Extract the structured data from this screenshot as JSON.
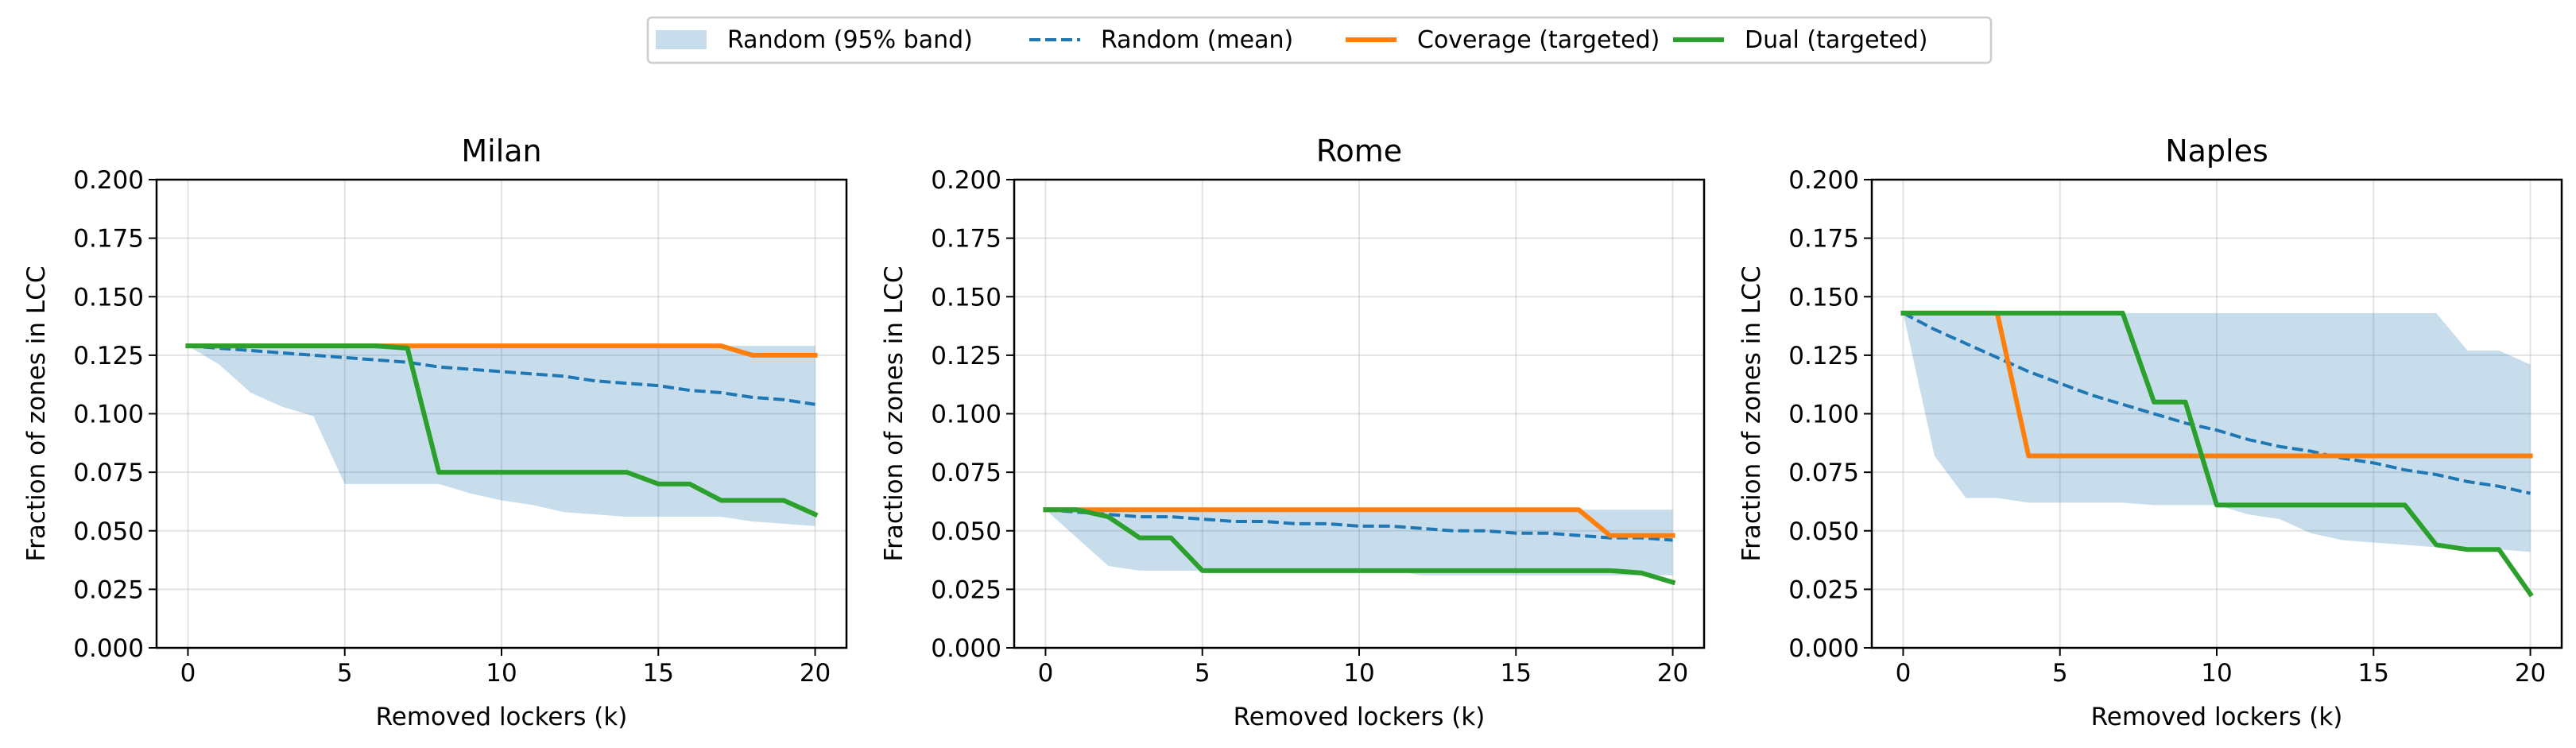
{
  "legend": {
    "placement": "top-center",
    "entries": [
      {
        "key": "band",
        "label": "Random (95% band)",
        "color": "#1f77b4",
        "style": "band"
      },
      {
        "key": "mean",
        "label": "Random (mean)",
        "color": "#1f77b4",
        "style": "dashed"
      },
      {
        "key": "coverage",
        "label": "Coverage (targeted)",
        "color": "#ff7f0e",
        "style": "solid"
      },
      {
        "key": "dual",
        "label": "Dual (targeted)",
        "color": "#2ca02c",
        "style": "solid"
      }
    ]
  },
  "chart_data": [
    {
      "type": "line",
      "title": "Milan",
      "xlabel": "Removed lockers (k)",
      "ylabel": "Fraction of zones in LCC",
      "xlim": [
        -1,
        21
      ],
      "ylim": [
        0,
        0.2
      ],
      "xticks": [
        0,
        5,
        10,
        15,
        20
      ],
      "yticks": [
        0,
        0.025,
        0.05,
        0.075,
        0.1,
        0.125,
        0.15,
        0.175,
        0.2
      ],
      "ytick_labels": [
        "0.000",
        "0.025",
        "0.050",
        "0.075",
        "0.100",
        "0.125",
        "0.150",
        "0.175",
        "0.200"
      ],
      "grid": true,
      "x": [
        0,
        1,
        2,
        3,
        4,
        5,
        6,
        7,
        8,
        9,
        10,
        11,
        12,
        13,
        14,
        15,
        16,
        17,
        18,
        19,
        20
      ],
      "band": {
        "lower": [
          0.129,
          0.121,
          0.109,
          0.103,
          0.099,
          0.07,
          0.07,
          0.07,
          0.07,
          0.066,
          0.063,
          0.061,
          0.058,
          0.057,
          0.056,
          0.056,
          0.056,
          0.056,
          0.054,
          0.053,
          0.052
        ],
        "upper": [
          0.129,
          0.129,
          0.129,
          0.129,
          0.129,
          0.129,
          0.129,
          0.129,
          0.129,
          0.129,
          0.129,
          0.129,
          0.129,
          0.129,
          0.129,
          0.129,
          0.129,
          0.129,
          0.129,
          0.129,
          0.129
        ]
      },
      "series": [
        {
          "key": "mean",
          "name": "Random (mean)",
          "values": [
            0.129,
            0.128,
            0.127,
            0.126,
            0.125,
            0.124,
            0.123,
            0.122,
            0.12,
            0.119,
            0.118,
            0.117,
            0.116,
            0.114,
            0.113,
            0.112,
            0.11,
            0.109,
            0.107,
            0.106,
            0.104
          ]
        },
        {
          "key": "coverage",
          "name": "Coverage (targeted)",
          "values": [
            0.129,
            0.129,
            0.129,
            0.129,
            0.129,
            0.129,
            0.129,
            0.129,
            0.129,
            0.129,
            0.129,
            0.129,
            0.129,
            0.129,
            0.129,
            0.129,
            0.129,
            0.129,
            0.125,
            0.125,
            0.125
          ]
        },
        {
          "key": "dual",
          "name": "Dual (targeted)",
          "values": [
            0.129,
            0.129,
            0.129,
            0.129,
            0.129,
            0.129,
            0.129,
            0.128,
            0.075,
            0.075,
            0.075,
            0.075,
            0.075,
            0.075,
            0.075,
            0.07,
            0.07,
            0.063,
            0.063,
            0.063,
            0.057
          ]
        }
      ]
    },
    {
      "type": "line",
      "title": "Rome",
      "xlabel": "Removed lockers (k)",
      "ylabel": "Fraction of zones in LCC",
      "xlim": [
        -1,
        21
      ],
      "ylim": [
        0,
        0.2
      ],
      "xticks": [
        0,
        5,
        10,
        15,
        20
      ],
      "yticks": [
        0,
        0.025,
        0.05,
        0.075,
        0.1,
        0.125,
        0.15,
        0.175,
        0.2
      ],
      "ytick_labels": [
        "0.000",
        "0.025",
        "0.050",
        "0.075",
        "0.100",
        "0.125",
        "0.150",
        "0.175",
        "0.200"
      ],
      "grid": true,
      "x": [
        0,
        1,
        2,
        3,
        4,
        5,
        6,
        7,
        8,
        9,
        10,
        11,
        12,
        13,
        14,
        15,
        16,
        17,
        18,
        19,
        20
      ],
      "band": {
        "lower": [
          0.059,
          0.047,
          0.035,
          0.033,
          0.033,
          0.033,
          0.033,
          0.033,
          0.033,
          0.033,
          0.033,
          0.033,
          0.031,
          0.031,
          0.031,
          0.031,
          0.031,
          0.031,
          0.031,
          0.031,
          0.031
        ],
        "upper": [
          0.059,
          0.059,
          0.059,
          0.059,
          0.059,
          0.059,
          0.059,
          0.059,
          0.059,
          0.059,
          0.059,
          0.059,
          0.059,
          0.059,
          0.059,
          0.059,
          0.059,
          0.059,
          0.059,
          0.059,
          0.059
        ]
      },
      "series": [
        {
          "key": "mean",
          "name": "Random (mean)",
          "values": [
            0.059,
            0.058,
            0.057,
            0.056,
            0.056,
            0.055,
            0.054,
            0.054,
            0.053,
            0.053,
            0.052,
            0.052,
            0.051,
            0.05,
            0.05,
            0.049,
            0.049,
            0.048,
            0.047,
            0.047,
            0.046
          ]
        },
        {
          "key": "coverage",
          "name": "Coverage (targeted)",
          "values": [
            0.059,
            0.059,
            0.059,
            0.059,
            0.059,
            0.059,
            0.059,
            0.059,
            0.059,
            0.059,
            0.059,
            0.059,
            0.059,
            0.059,
            0.059,
            0.059,
            0.059,
            0.059,
            0.048,
            0.048,
            0.048
          ]
        },
        {
          "key": "dual",
          "name": "Dual (targeted)",
          "values": [
            0.059,
            0.059,
            0.056,
            0.047,
            0.047,
            0.033,
            0.033,
            0.033,
            0.033,
            0.033,
            0.033,
            0.033,
            0.033,
            0.033,
            0.033,
            0.033,
            0.033,
            0.033,
            0.033,
            0.032,
            0.028
          ]
        }
      ]
    },
    {
      "type": "line",
      "title": "Naples",
      "xlabel": "Removed lockers (k)",
      "ylabel": "Fraction of zones in LCC",
      "xlim": [
        -1,
        21
      ],
      "ylim": [
        0,
        0.2
      ],
      "xticks": [
        0,
        5,
        10,
        15,
        20
      ],
      "yticks": [
        0,
        0.025,
        0.05,
        0.075,
        0.1,
        0.125,
        0.15,
        0.175,
        0.2
      ],
      "ytick_labels": [
        "0.000",
        "0.025",
        "0.050",
        "0.075",
        "0.100",
        "0.125",
        "0.150",
        "0.175",
        "0.200"
      ],
      "grid": true,
      "x": [
        0,
        1,
        2,
        3,
        4,
        5,
        6,
        7,
        8,
        9,
        10,
        11,
        12,
        13,
        14,
        15,
        16,
        17,
        18,
        19,
        20
      ],
      "band": {
        "lower": [
          0.143,
          0.082,
          0.064,
          0.064,
          0.062,
          0.062,
          0.062,
          0.062,
          0.061,
          0.061,
          0.061,
          0.057,
          0.055,
          0.049,
          0.046,
          0.045,
          0.044,
          0.043,
          0.043,
          0.042,
          0.041
        ],
        "upper": [
          0.143,
          0.143,
          0.143,
          0.143,
          0.143,
          0.143,
          0.143,
          0.143,
          0.143,
          0.143,
          0.143,
          0.143,
          0.143,
          0.143,
          0.143,
          0.143,
          0.143,
          0.143,
          0.127,
          0.127,
          0.121
        ]
      },
      "series": [
        {
          "key": "mean",
          "name": "Random (mean)",
          "values": [
            0.143,
            0.136,
            0.13,
            0.124,
            0.118,
            0.113,
            0.108,
            0.104,
            0.1,
            0.096,
            0.093,
            0.089,
            0.086,
            0.084,
            0.081,
            0.079,
            0.076,
            0.074,
            0.071,
            0.069,
            0.066
          ]
        },
        {
          "key": "coverage",
          "name": "Coverage (targeted)",
          "values": [
            0.143,
            0.143,
            0.143,
            0.143,
            0.082,
            0.082,
            0.082,
            0.082,
            0.082,
            0.082,
            0.082,
            0.082,
            0.082,
            0.082,
            0.082,
            0.082,
            0.082,
            0.082,
            0.082,
            0.082,
            0.082
          ]
        },
        {
          "key": "dual",
          "name": "Dual (targeted)",
          "values": [
            0.143,
            0.143,
            0.143,
            0.143,
            0.143,
            0.143,
            0.143,
            0.143,
            0.105,
            0.105,
            0.061,
            0.061,
            0.061,
            0.061,
            0.061,
            0.061,
            0.061,
            0.044,
            0.042,
            0.042,
            0.023
          ]
        }
      ]
    }
  ]
}
